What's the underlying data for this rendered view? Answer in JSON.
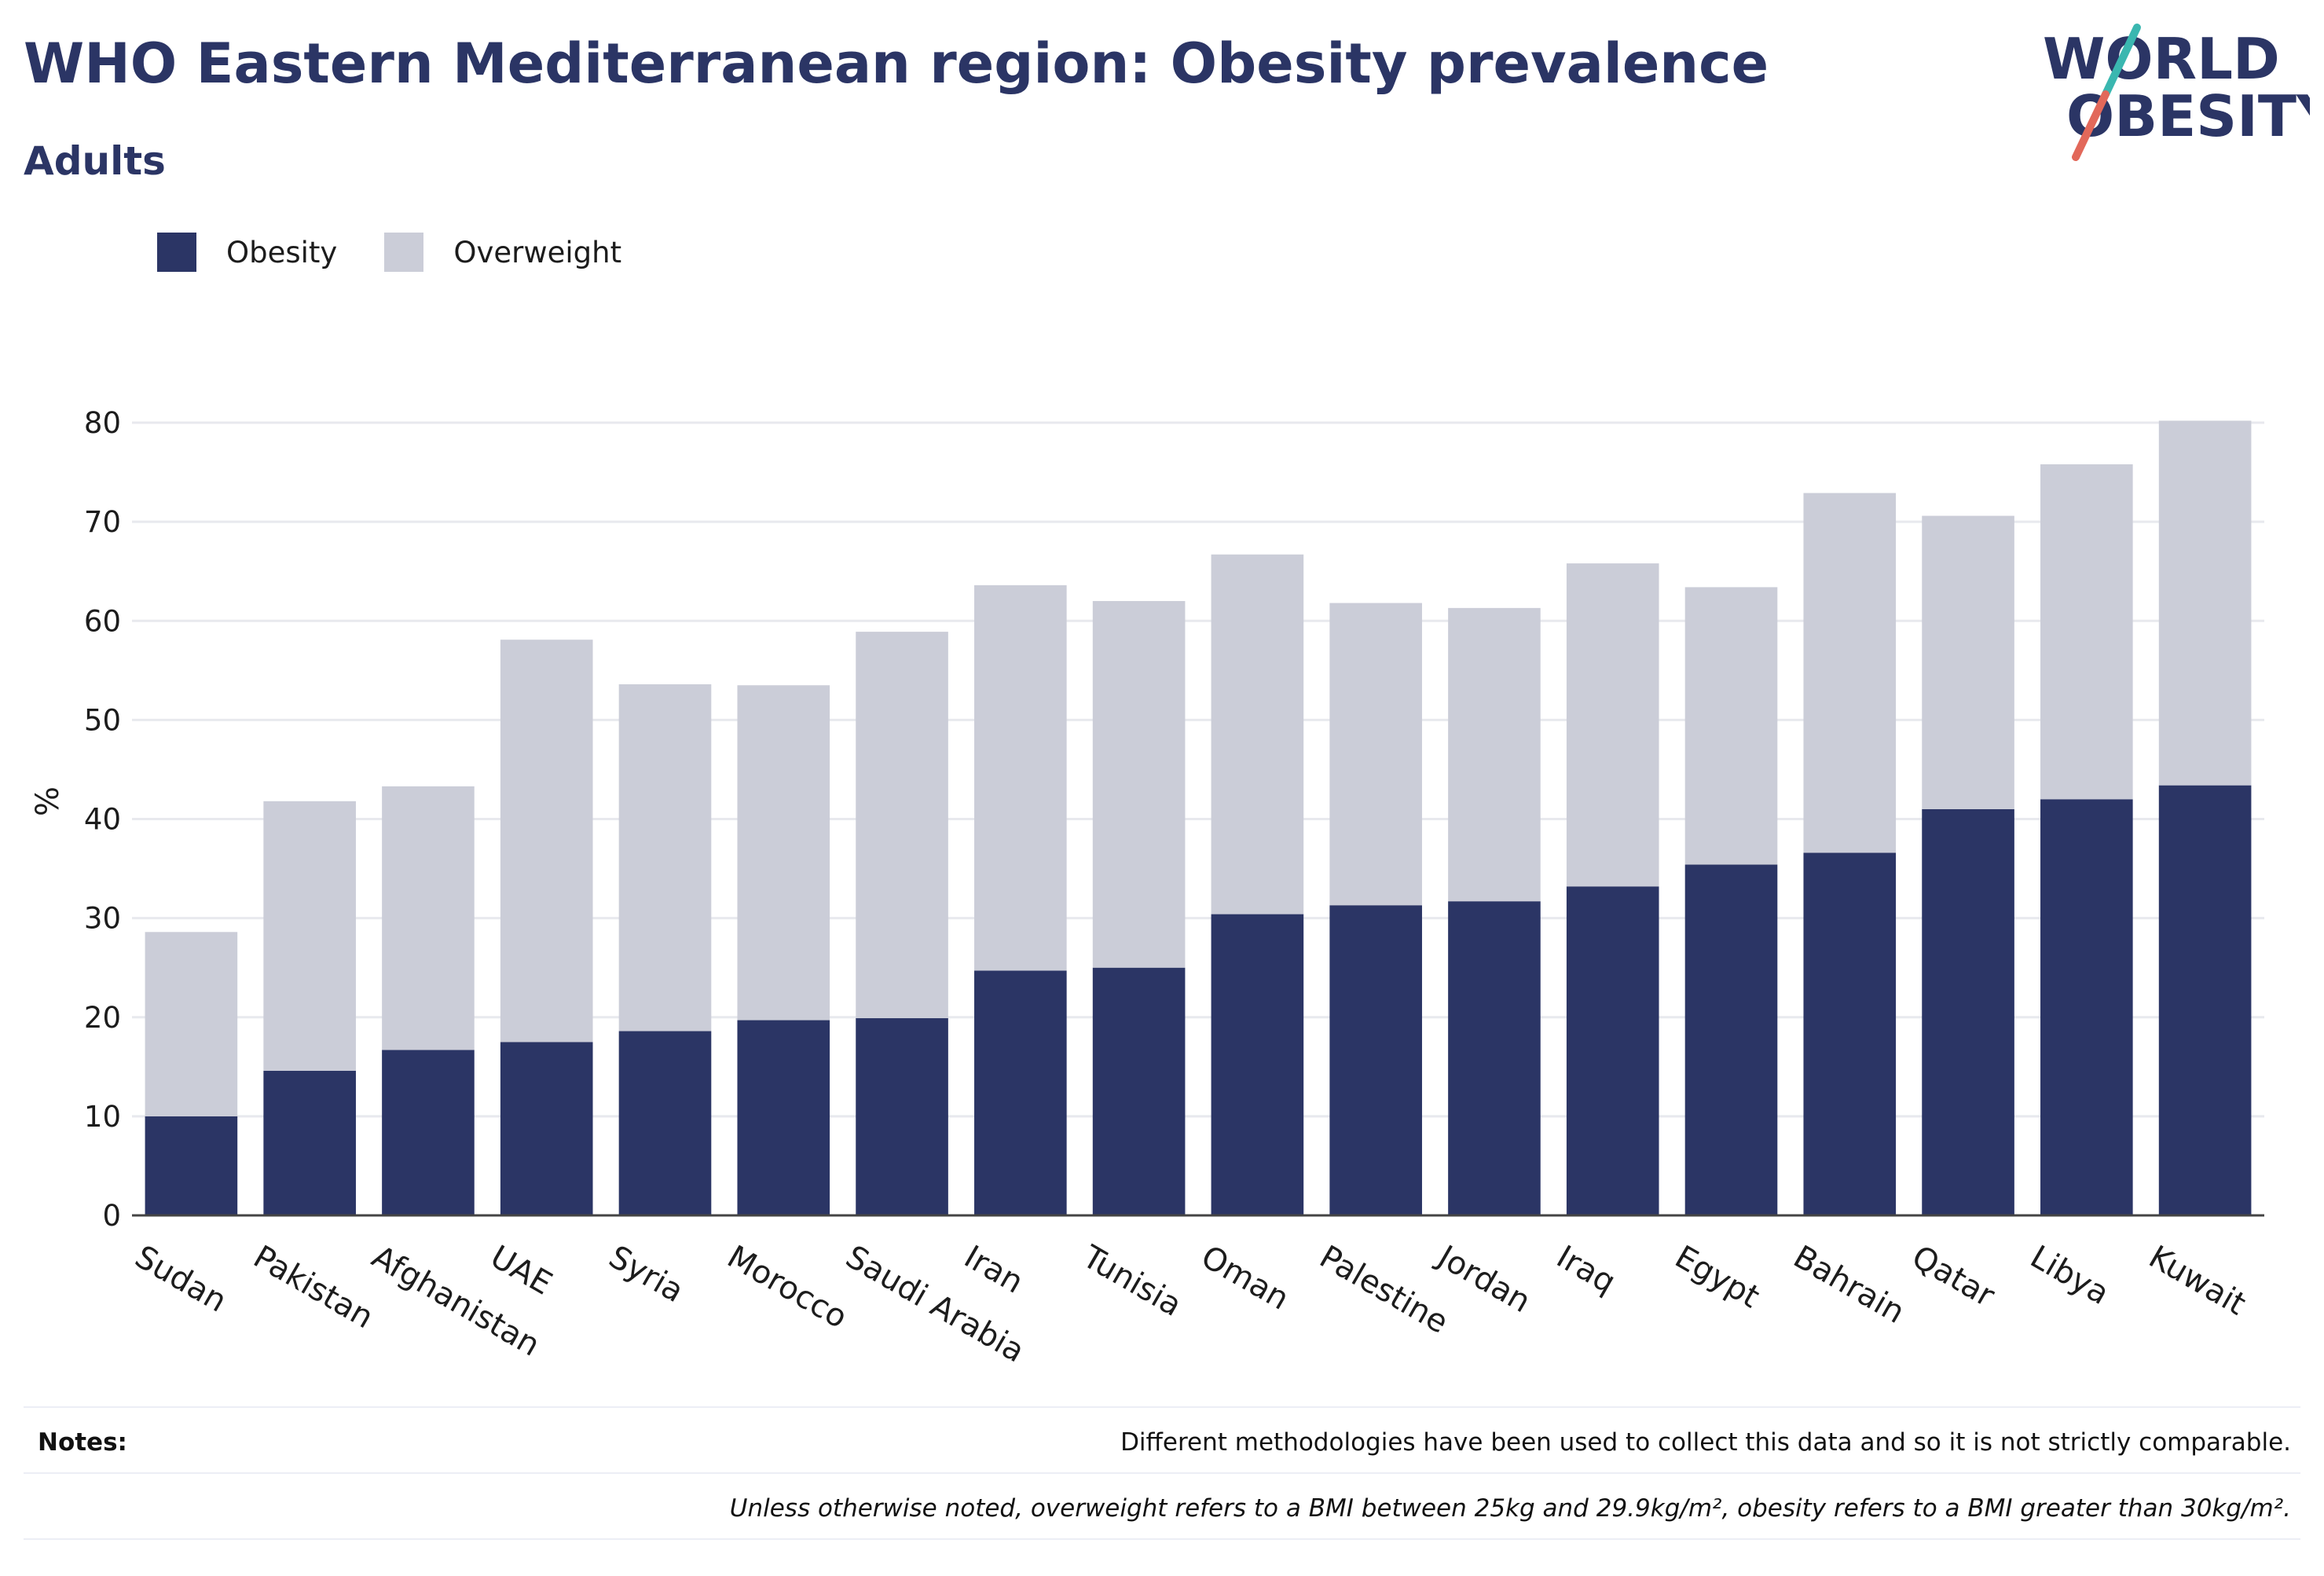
{
  "header": {
    "title": "WHO Eastern Mediterranean region: Obesity prevalence",
    "subtitle": "Adults"
  },
  "logo": {
    "line1": "WORLD",
    "line2": "OBESITY"
  },
  "notes": {
    "label": "Notes:",
    "text": "Different methodologies have been used to collect this data and so it is not strictly comparable.",
    "definition": "Unless otherwise noted, overweight refers to a BMI between 25kg and 29.9kg/m², obesity refers to a BMI greater than 30kg/m²."
  },
  "colors": {
    "obesity": "#2b3565",
    "overweight": "#cbcdd8",
    "grid": "#e8e9ee",
    "axis": "#444444"
  },
  "chart_data": {
    "type": "bar",
    "stacked": true,
    "ylabel": "%",
    "ylim": [
      0,
      80
    ],
    "yticks": [
      0,
      10,
      20,
      30,
      40,
      50,
      60,
      70,
      80
    ],
    "grid": true,
    "legend": "top-left",
    "categories": [
      "Sudan",
      "Pakistan",
      "Afghanistan",
      "UAE",
      "Syria",
      "Morocco",
      "Saudi Arabia",
      "Iran",
      "Tunisia",
      "Oman",
      "Palestine",
      "Jordan",
      "Iraq",
      "Egypt",
      "Bahrain",
      "Qatar",
      "Libya",
      "Kuwait"
    ],
    "series": [
      {
        "name": "Obesity",
        "values": [
          10.0,
          14.6,
          16.7,
          17.5,
          18.6,
          19.7,
          19.9,
          24.7,
          25.0,
          30.4,
          31.3,
          31.7,
          33.2,
          35.4,
          36.6,
          41.0,
          42.0,
          43.4
        ]
      },
      {
        "name": "Overweight",
        "values": [
          18.6,
          27.2,
          26.6,
          40.6,
          35.0,
          33.8,
          39.0,
          38.9,
          37.0,
          36.3,
          30.5,
          29.6,
          32.6,
          28.0,
          36.3,
          29.6,
          33.8,
          36.8
        ]
      }
    ]
  }
}
